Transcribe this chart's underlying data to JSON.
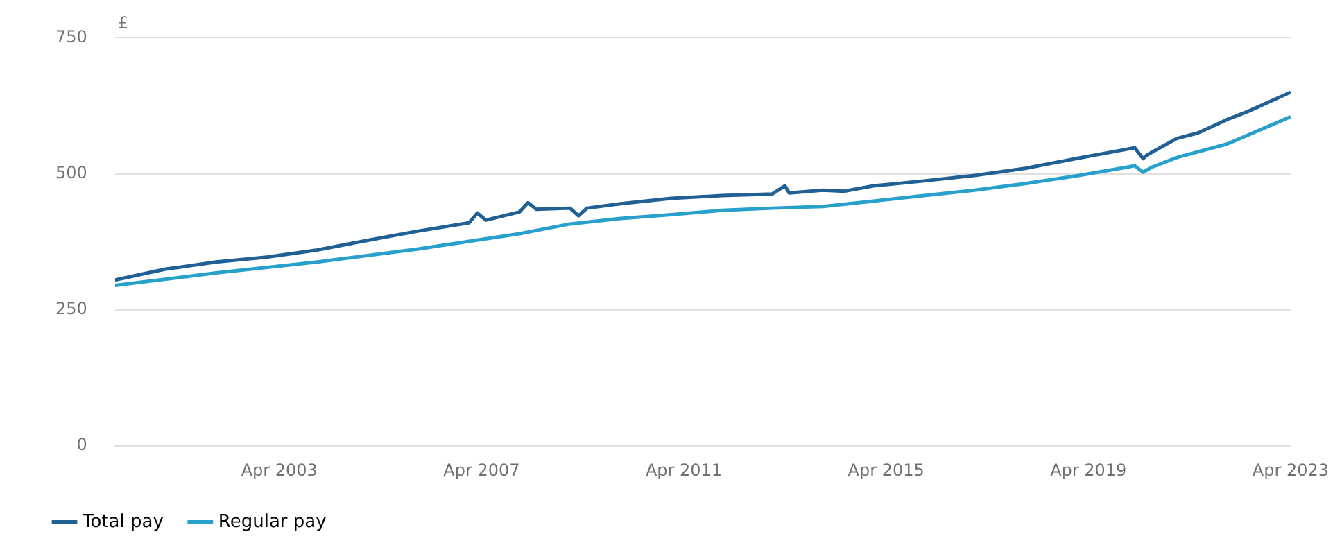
{
  "chart_data": {
    "type": "line",
    "ylabel": "£",
    "xlim": [
      "2000-01",
      "2023-04"
    ],
    "xticks": [
      {
        "value": "2003-04",
        "label": "Apr 2003"
      },
      {
        "value": "2007-04",
        "label": "Apr 2007"
      },
      {
        "value": "2011-04",
        "label": "Apr 2011"
      },
      {
        "value": "2015-04",
        "label": "Apr 2015"
      },
      {
        "value": "2019-04",
        "label": "Apr 2019"
      },
      {
        "value": "2023-04",
        "label": "Apr 2023"
      }
    ],
    "ylim": [
      0,
      750
    ],
    "yticks": [
      0,
      250,
      500,
      750
    ],
    "grid": "y",
    "legend": "bottom left",
    "marker": "none",
    "line_style": "solid",
    "series": [
      {
        "name": "Total pay",
        "color": "#206095",
        "x": [
          "2000-01",
          "2001-01",
          "2002-01",
          "2003-01",
          "2004-01",
          "2005-01",
          "2006-01",
          "2007-01",
          "2007-03",
          "2007-05",
          "2008-01",
          "2008-03",
          "2008-05",
          "2009-01",
          "2009-03",
          "2009-05",
          "2010-01",
          "2011-01",
          "2012-01",
          "2013-01",
          "2013-04",
          "2013-05",
          "2014-01",
          "2014-06",
          "2015-01",
          "2016-01",
          "2017-01",
          "2018-01",
          "2019-01",
          "2020-01",
          "2020-03",
          "2020-05",
          "2020-06",
          "2021-01",
          "2021-06",
          "2022-01",
          "2022-06",
          "2023-04"
        ],
        "values": [
          305,
          325,
          338,
          347,
          360,
          378,
          395,
          410,
          428,
          415,
          430,
          447,
          435,
          437,
          423,
          437,
          445,
          455,
          460,
          463,
          478,
          465,
          470,
          468,
          478,
          487,
          497,
          510,
          528,
          545,
          548,
          528,
          535,
          565,
          575,
          600,
          615,
          650
        ]
      },
      {
        "name": "Regular pay",
        "color": "#27a0cc",
        "x": [
          "2000-01",
          "2002-01",
          "2004-01",
          "2006-01",
          "2008-01",
          "2009-01",
          "2010-01",
          "2011-01",
          "2012-01",
          "2013-01",
          "2014-01",
          "2015-01",
          "2016-01",
          "2017-01",
          "2018-01",
          "2019-01",
          "2020-01",
          "2020-03",
          "2020-05",
          "2020-07",
          "2021-01",
          "2022-01",
          "2023-04"
        ],
        "values": [
          295,
          318,
          338,
          362,
          390,
          408,
          418,
          425,
          433,
          437,
          440,
          450,
          460,
          470,
          482,
          496,
          512,
          515,
          503,
          512,
          530,
          555,
          605
        ]
      }
    ]
  }
}
